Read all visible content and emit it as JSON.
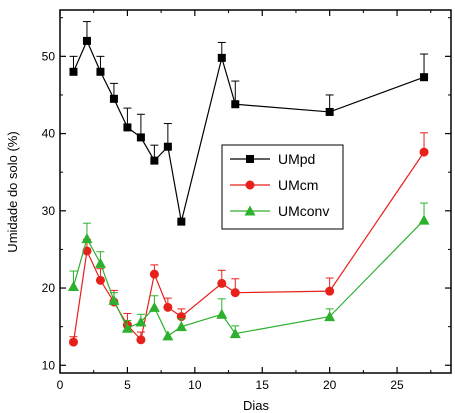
{
  "chart_data": {
    "type": "line",
    "xlabel": "Dias",
    "ylabel": "Umidade do solo (%)",
    "xlim": [
      0,
      29
    ],
    "ylim": [
      9,
      56
    ],
    "xticks": [
      0,
      5,
      10,
      15,
      20,
      25
    ],
    "yticks": [
      10,
      20,
      30,
      40,
      50
    ],
    "grid": false,
    "legend_position": "center-right",
    "series": [
      {
        "name": "UMpd",
        "color": "#000000",
        "marker": "square",
        "x": [
          1,
          2,
          3,
          4,
          5,
          6,
          7,
          8,
          9,
          12,
          13,
          20,
          27
        ],
        "y": [
          48.0,
          52.0,
          48.0,
          44.5,
          40.8,
          39.5,
          36.5,
          38.3,
          28.6,
          49.8,
          43.8,
          42.8,
          47.3
        ],
        "err": [
          2.0,
          2.5,
          2.0,
          2.0,
          2.5,
          3.0,
          2.0,
          3.0,
          0,
          2.0,
          3.0,
          2.2,
          3.0
        ]
      },
      {
        "name": "UMcm",
        "color": "#e8201c",
        "marker": "circle",
        "x": [
          1,
          2,
          3,
          4,
          5,
          6,
          7,
          8,
          9,
          12,
          13,
          20,
          27
        ],
        "y": [
          13.0,
          24.8,
          21.0,
          18.2,
          15.2,
          13.3,
          21.8,
          17.5,
          16.3,
          20.6,
          19.4,
          19.6,
          37.6
        ],
        "err": [
          0.7,
          1.5,
          1.5,
          1.5,
          1.5,
          1.0,
          1.2,
          1.2,
          1.0,
          1.7,
          1.8,
          1.7,
          2.5
        ]
      },
      {
        "name": "UMconv",
        "color": "#2db02d",
        "marker": "triangle",
        "x": [
          1,
          2,
          3,
          4,
          5,
          6,
          7,
          8,
          9,
          12,
          13,
          20,
          27
        ],
        "y": [
          20.2,
          26.4,
          23.2,
          18.4,
          14.8,
          15.6,
          17.5,
          13.8,
          15.0,
          16.6,
          14.1,
          16.3,
          28.8
        ],
        "err": [
          2.0,
          2.0,
          1.5,
          1.0,
          1.0,
          1.0,
          1.5,
          0,
          1.0,
          2.0,
          1.0,
          1.0,
          2.2
        ]
      }
    ]
  }
}
